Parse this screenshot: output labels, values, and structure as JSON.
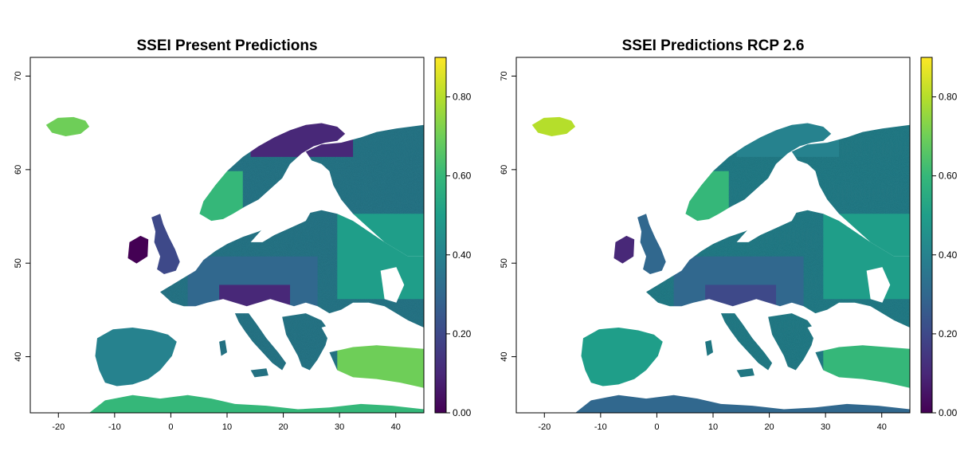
{
  "panels": [
    {
      "title": "SSEI Present Predictions",
      "x_ticks": [
        "-20",
        "-10",
        "0",
        "10",
        "20",
        "30",
        "40"
      ],
      "y_ticks": [
        "40",
        "50",
        "60",
        "70"
      ],
      "scenario": "present"
    },
    {
      "title": "SSEI Predictions RCP 2.6",
      "x_ticks": [
        "-20",
        "-10",
        "0",
        "10",
        "20",
        "30",
        "40"
      ],
      "y_ticks": [
        "40",
        "50",
        "60",
        "70"
      ],
      "scenario": "rcp26"
    }
  ],
  "colorbar": {
    "ticks": [
      "0.00",
      "0.20",
      "0.40",
      "0.60",
      "0.80"
    ],
    "tick_values": [
      0.0,
      0.2,
      0.4,
      0.6,
      0.8
    ],
    "range": [
      0.0,
      0.9
    ],
    "palette": [
      "#440154",
      "#482878",
      "#3e4989",
      "#31688e",
      "#26828e",
      "#1f9e89",
      "#35b779",
      "#6ece58",
      "#b5de2b",
      "#fde725"
    ]
  },
  "map_extent": {
    "lon": [
      -25,
      45
    ],
    "lat": [
      34,
      72
    ]
  },
  "x_tick_values": [
    -20,
    -10,
    0,
    10,
    20,
    30,
    40
  ],
  "y_tick_values": [
    40,
    50,
    60,
    70
  ]
}
